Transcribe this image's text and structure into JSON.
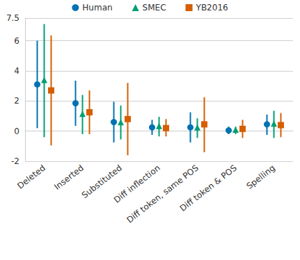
{
  "chart_data": {
    "type": "errorbar",
    "categories": [
      "Deleted",
      "Inserted",
      "Substituted",
      "Diff inflection",
      "Diff token, same POS",
      "Diff token & POS",
      "Spelling"
    ],
    "series": [
      {
        "name": "Human",
        "color": "#0072b2",
        "marker": "circle",
        "values": [
          3.1,
          1.85,
          0.6,
          0.25,
          0.25,
          0.05,
          0.45
        ],
        "error_low": [
          0.2,
          0.35,
          -0.75,
          -0.25,
          -0.75,
          -0.2,
          -0.25
        ],
        "error_high": [
          6.0,
          3.35,
          1.95,
          0.75,
          1.25,
          0.3,
          1.1
        ]
      },
      {
        "name": "SMEC",
        "color": "#009e73",
        "marker": "triangle",
        "values": [
          3.35,
          1.1,
          0.55,
          0.3,
          0.2,
          0.05,
          0.45
        ],
        "error_low": [
          -0.4,
          -0.2,
          -0.55,
          -0.35,
          -0.45,
          -0.2,
          -0.45
        ],
        "error_high": [
          7.1,
          2.4,
          1.7,
          0.95,
          0.85,
          0.3,
          1.35
        ]
      },
      {
        "name": "YB2016",
        "color": "#d55e00",
        "marker": "square",
        "values": [
          2.7,
          1.25,
          0.8,
          0.2,
          0.45,
          0.15,
          0.4
        ],
        "error_low": [
          -0.95,
          -0.2,
          -1.6,
          -0.35,
          -1.4,
          -0.45,
          -0.4
        ],
        "error_high": [
          6.35,
          2.7,
          3.2,
          0.8,
          2.25,
          0.75,
          1.2
        ]
      }
    ],
    "ylim": [
      -2,
      7.5
    ],
    "yticks": [
      -2,
      0,
      2,
      4,
      6
    ],
    "grid": true,
    "legend": "top"
  }
}
